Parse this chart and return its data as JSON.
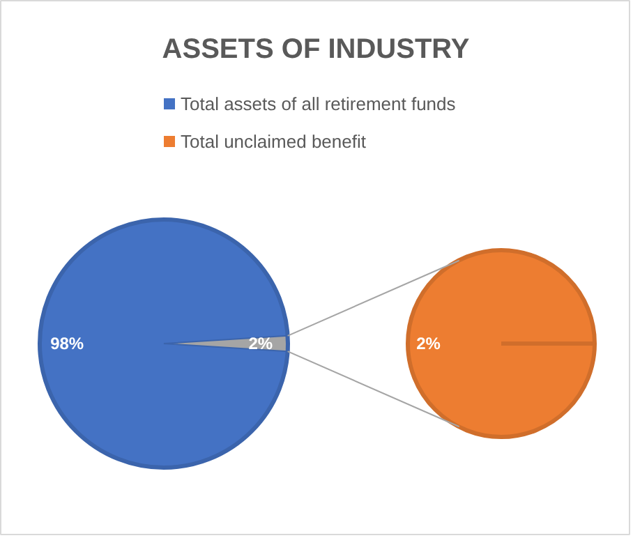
{
  "chart_data": [
    {
      "type": "pie",
      "title": "ASSETS OF INDUSTRY",
      "legend": "top",
      "categories": [
        "Total assets of all retirement funds",
        null
      ],
      "values": [
        98,
        2
      ],
      "colors": [
        "#4472c4",
        "#a5a5a5"
      ],
      "value_labels": [
        "98%",
        "2%"
      ]
    },
    {
      "type": "pie",
      "categories": [
        "Total unclaimed benefit"
      ],
      "values": [
        2
      ],
      "colors": [
        "#ed7d31"
      ],
      "value_labels": [
        "2%"
      ]
    }
  ]
}
